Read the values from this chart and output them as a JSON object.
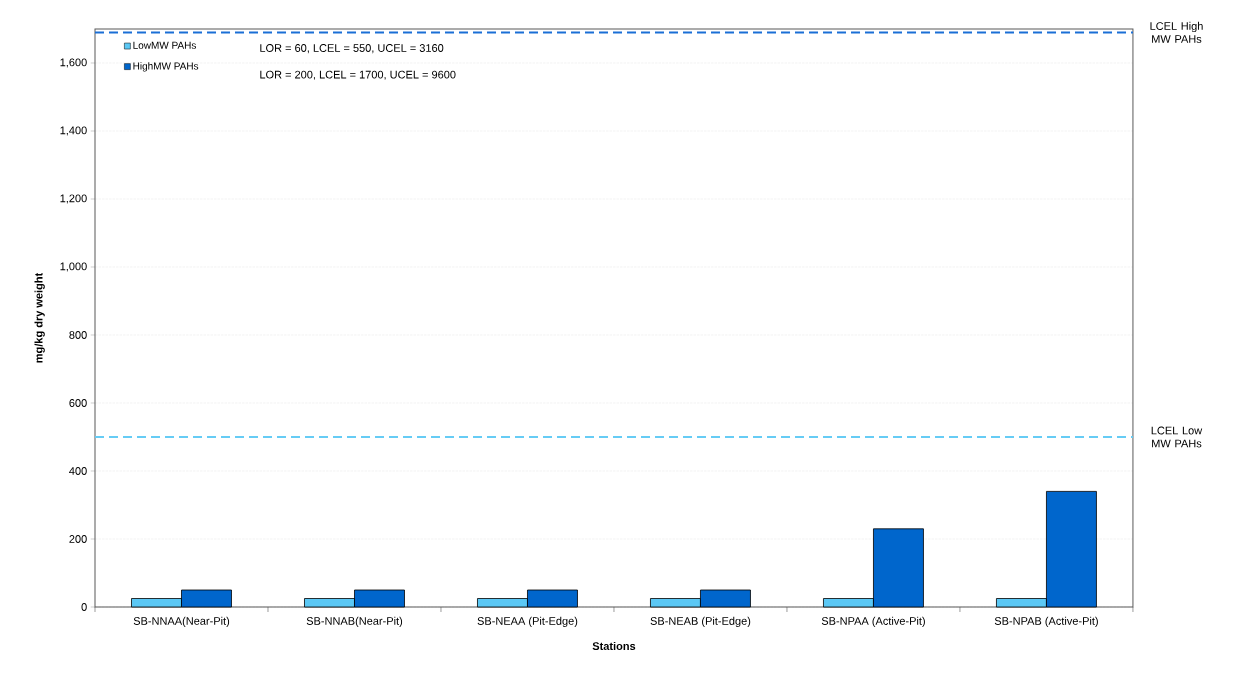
{
  "chart_data": {
    "type": "bar",
    "xlabel": "Stations",
    "ylabel": "mg/kg dry weight",
    "categories": [
      "SB-NNAA(Near-Pit)",
      "SB-NNAB(Near-Pit)",
      "SB-NEAA (Pit-Edge)",
      "SB-NEAB (Pit-Edge)",
      "SB-NPAA (Active-Pit)",
      "SB-NPAB (Active-Pit)"
    ],
    "series": [
      {
        "name": "LowMW PAHs",
        "color": "#5bc8f5",
        "values": [
          25,
          25,
          25,
          25,
          25,
          25
        ]
      },
      {
        "name": "HighMW PAHs",
        "color": "#0066cc",
        "values": [
          50,
          50,
          50,
          50,
          230,
          340
        ]
      }
    ],
    "ylim": [
      0,
      1700
    ],
    "yticks": [
      0,
      200,
      400,
      600,
      800,
      {
        "value": 1000,
        "label": "1,000"
      },
      {
        "value": 1200,
        "label": "1,200"
      },
      {
        "value": 1400,
        "label": "1,400"
      },
      {
        "value": 1600,
        "label": "1,600"
      }
    ],
    "grid": "y",
    "legend": "top left",
    "annotations": [
      "LOR = 60, LCEL = 550, UCEL = 3160",
      "LOR = 200, LCEL = 1700, UCEL = 9600"
    ],
    "ref_lines": [
      {
        "axis": "y",
        "value": 500,
        "label": "LCEL Low MW PAHs",
        "color": "#66ccf5",
        "line_style": "dashed"
      },
      {
        "axis": "y",
        "value": 1690,
        "label": "LCEL High MW PAHs",
        "color": "#1a6fd6",
        "line_style": "dashed"
      }
    ]
  }
}
